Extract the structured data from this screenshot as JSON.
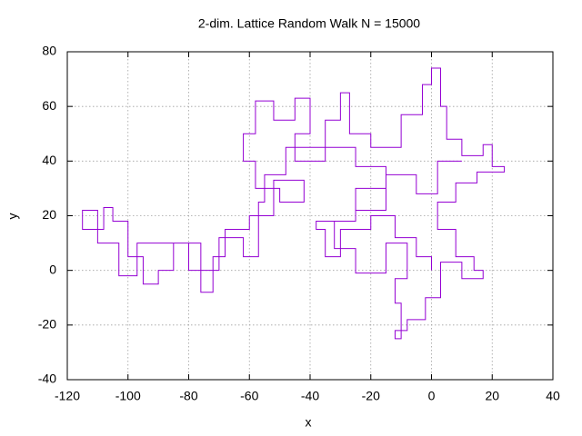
{
  "chart_data": {
    "type": "line",
    "title": "2-dim. Lattice Random Walk N = 15000",
    "xlabel": "x",
    "ylabel": "y",
    "color": "#9400d3",
    "xlim": [
      -120,
      40
    ],
    "ylim": [
      -40,
      80
    ],
    "xticks": [
      -120,
      -100,
      -80,
      -60,
      -40,
      -20,
      0,
      20,
      40
    ],
    "yticks": [
      -40,
      -20,
      0,
      20,
      40,
      60,
      80
    ],
    "grid": true,
    "x": [
      0,
      0,
      -5,
      -5,
      -12,
      -12,
      -20,
      -20,
      -30,
      -30,
      -35,
      -35,
      -38,
      -38,
      -25,
      -25,
      -15,
      -15,
      -25,
      -25,
      -35,
      -35,
      -45,
      -45,
      -40,
      -40,
      -45,
      -45,
      -52,
      -52,
      -58,
      -58,
      -62,
      -62,
      -58,
      -58,
      -50,
      -50,
      -42,
      -42,
      -52,
      -52,
      -60,
      -60,
      -68,
      -68,
      -72,
      -72,
      -76,
      -76,
      -85,
      -85,
      -90,
      -90,
      -95,
      -95,
      -100,
      -100,
      -105,
      -105,
      -108,
      -108,
      -115,
      -115,
      -110,
      -110,
      -103,
      -103,
      -97,
      -97,
      -80,
      -80,
      -70,
      -70,
      -62,
      -62,
      -57,
      -57,
      -55,
      -55,
      -48,
      -48,
      -35,
      -35,
      -30,
      -30,
      -27,
      -27,
      -20,
      -20,
      -10,
      -10,
      -3,
      -3,
      0,
      0,
      3,
      3,
      5,
      5,
      10,
      10,
      17,
      17,
      20,
      20,
      24,
      24,
      15,
      15,
      8,
      8,
      2,
      2,
      8,
      8,
      14,
      14,
      17,
      17,
      10,
      10,
      3,
      3,
      -2,
      -2,
      -8,
      -8,
      -12,
      -12,
      -10,
      -10,
      -12,
      -12,
      -8,
      -8,
      -15,
      -15,
      -25,
      -25,
      -32,
      -32,
      -25,
      -25,
      -15,
      -15,
      -5,
      -5,
      2,
      2,
      10
    ],
    "values": [
      0,
      5,
      5,
      12,
      12,
      20,
      20,
      15,
      15,
      5,
      5,
      15,
      15,
      18,
      18,
      30,
      30,
      38,
      38,
      45,
      45,
      40,
      40,
      50,
      50,
      63,
      63,
      55,
      55,
      62,
      62,
      50,
      50,
      40,
      40,
      30,
      30,
      25,
      25,
      33,
      33,
      20,
      20,
      15,
      15,
      5,
      5,
      -8,
      -8,
      10,
      10,
      0,
      0,
      -5,
      -5,
      5,
      5,
      18,
      18,
      23,
      23,
      15,
      15,
      22,
      22,
      10,
      10,
      -2,
      -2,
      10,
      10,
      0,
      0,
      12,
      12,
      5,
      5,
      25,
      25,
      35,
      35,
      45,
      45,
      55,
      55,
      65,
      65,
      50,
      50,
      45,
      45,
      57,
      57,
      68,
      68,
      74,
      74,
      60,
      60,
      48,
      48,
      42,
      42,
      46,
      46,
      38,
      38,
      36,
      36,
      32,
      32,
      25,
      25,
      15,
      15,
      5,
      5,
      0,
      0,
      -3,
      -3,
      3,
      3,
      -10,
      -10,
      -18,
      -18,
      -22,
      -22,
      -25,
      -25,
      -12,
      -12,
      -3,
      -3,
      10,
      10,
      -1,
      -1,
      8,
      8,
      18,
      18,
      22,
      22,
      35,
      35,
      28,
      28,
      40,
      40
    ]
  }
}
